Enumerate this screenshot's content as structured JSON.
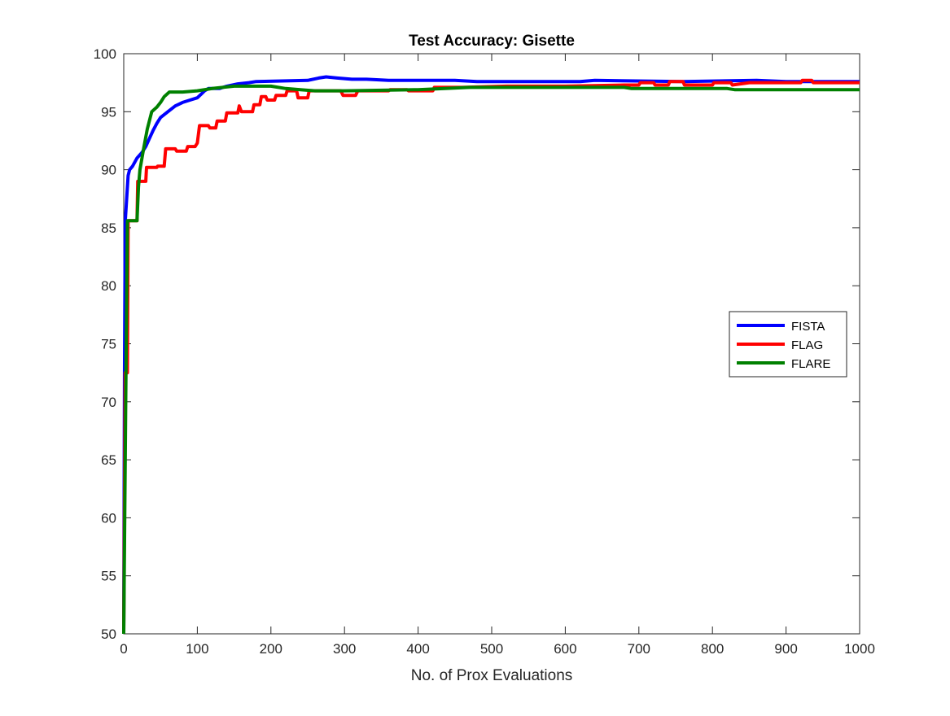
{
  "chart_data": {
    "type": "line",
    "title": "Test Accuracy: Gisette",
    "xlabel": "No. of Prox Evaluations",
    "ylabel": "",
    "xlim": [
      0,
      1000
    ],
    "ylim": [
      50,
      100
    ],
    "xticks": [
      0,
      100,
      200,
      300,
      400,
      500,
      600,
      700,
      800,
      900,
      1000
    ],
    "yticks": [
      50,
      55,
      60,
      65,
      70,
      75,
      80,
      85,
      90,
      95,
      100
    ],
    "grid": false,
    "legend_position": "right",
    "series": [
      {
        "name": "FISTA",
        "color": "#0000ff",
        "points": [
          [
            0,
            50
          ],
          [
            1,
            72
          ],
          [
            2,
            85.5
          ],
          [
            4,
            87.5
          ],
          [
            6,
            89.5
          ],
          [
            8,
            90
          ],
          [
            12,
            90.3
          ],
          [
            18,
            91
          ],
          [
            25,
            91.5
          ],
          [
            30,
            92
          ],
          [
            35,
            92.7
          ],
          [
            40,
            93.4
          ],
          [
            45,
            94
          ],
          [
            50,
            94.5
          ],
          [
            60,
            95
          ],
          [
            70,
            95.5
          ],
          [
            80,
            95.8
          ],
          [
            90,
            96
          ],
          [
            100,
            96.2
          ],
          [
            105,
            96.5
          ],
          [
            110,
            96.8
          ],
          [
            115,
            97
          ],
          [
            130,
            97
          ],
          [
            140,
            97.2
          ],
          [
            155,
            97.4
          ],
          [
            170,
            97.5
          ],
          [
            180,
            97.6
          ],
          [
            250,
            97.7
          ],
          [
            265,
            97.9
          ],
          [
            275,
            98
          ],
          [
            290,
            97.9
          ],
          [
            310,
            97.8
          ],
          [
            330,
            97.8
          ],
          [
            360,
            97.7
          ],
          [
            450,
            97.7
          ],
          [
            480,
            97.6
          ],
          [
            620,
            97.6
          ],
          [
            640,
            97.7
          ],
          [
            760,
            97.6
          ],
          [
            860,
            97.7
          ],
          [
            900,
            97.6
          ],
          [
            1000,
            97.6
          ]
        ]
      },
      {
        "name": "FLAG",
        "color": "#ff0000",
        "points": [
          [
            0,
            50
          ],
          [
            2,
            72.5
          ],
          [
            5,
            72.5
          ],
          [
            6,
            85.6
          ],
          [
            18,
            85.6
          ],
          [
            19,
            89
          ],
          [
            30,
            89
          ],
          [
            31,
            90.2
          ],
          [
            45,
            90.2
          ],
          [
            46,
            90.3
          ],
          [
            55,
            90.3
          ],
          [
            57,
            91.8
          ],
          [
            70,
            91.8
          ],
          [
            72,
            91.6
          ],
          [
            85,
            91.6
          ],
          [
            87,
            92
          ],
          [
            97,
            92
          ],
          [
            100,
            92.3
          ],
          [
            103,
            93.8
          ],
          [
            115,
            93.8
          ],
          [
            117,
            93.6
          ],
          [
            125,
            93.6
          ],
          [
            127,
            94.2
          ],
          [
            138,
            94.2
          ],
          [
            140,
            94.9
          ],
          [
            155,
            94.9
          ],
          [
            157,
            95.5
          ],
          [
            160,
            95
          ],
          [
            175,
            95
          ],
          [
            177,
            95.6
          ],
          [
            185,
            95.6
          ],
          [
            187,
            96.3
          ],
          [
            193,
            96.3
          ],
          [
            195,
            96
          ],
          [
            205,
            96
          ],
          [
            207,
            96.4
          ],
          [
            220,
            96.4
          ],
          [
            222,
            96.8
          ],
          [
            235,
            96.8
          ],
          [
            237,
            96.2
          ],
          [
            250,
            96.2
          ],
          [
            252,
            96.8
          ],
          [
            295,
            96.8
          ],
          [
            298,
            96.4
          ],
          [
            315,
            96.4
          ],
          [
            318,
            96.8
          ],
          [
            360,
            96.8
          ],
          [
            362,
            96.9
          ],
          [
            385,
            96.9
          ],
          [
            387,
            96.8
          ],
          [
            420,
            96.8
          ],
          [
            422,
            97.1
          ],
          [
            460,
            97.1
          ],
          [
            520,
            97.2
          ],
          [
            600,
            97.2
          ],
          [
            680,
            97.3
          ],
          [
            700,
            97.3
          ],
          [
            702,
            97.5
          ],
          [
            720,
            97.5
          ],
          [
            722,
            97.3
          ],
          [
            740,
            97.3
          ],
          [
            742,
            97.6
          ],
          [
            760,
            97.6
          ],
          [
            762,
            97.3
          ],
          [
            800,
            97.3
          ],
          [
            802,
            97.5
          ],
          [
            825,
            97.5
          ],
          [
            827,
            97.3
          ],
          [
            850,
            97.5
          ],
          [
            920,
            97.5
          ],
          [
            922,
            97.7
          ],
          [
            935,
            97.7
          ],
          [
            937,
            97.5
          ],
          [
            1000,
            97.5
          ]
        ]
      },
      {
        "name": "FLARE",
        "color": "#008000",
        "points": [
          [
            0,
            50
          ],
          [
            3,
            72
          ],
          [
            5,
            85.6
          ],
          [
            18,
            85.6
          ],
          [
            20,
            88.5
          ],
          [
            22,
            90
          ],
          [
            27,
            91.8
          ],
          [
            32,
            93.5
          ],
          [
            38,
            95
          ],
          [
            45,
            95.4
          ],
          [
            50,
            95.8
          ],
          [
            55,
            96.3
          ],
          [
            62,
            96.7
          ],
          [
            80,
            96.7
          ],
          [
            100,
            96.8
          ],
          [
            120,
            97
          ],
          [
            150,
            97.2
          ],
          [
            200,
            97.2
          ],
          [
            220,
            97
          ],
          [
            240,
            96.9
          ],
          [
            260,
            96.8
          ],
          [
            300,
            96.8
          ],
          [
            400,
            96.9
          ],
          [
            470,
            97.1
          ],
          [
            680,
            97.1
          ],
          [
            690,
            97
          ],
          [
            820,
            97
          ],
          [
            830,
            96.9
          ],
          [
            1000,
            96.9
          ]
        ]
      }
    ]
  }
}
